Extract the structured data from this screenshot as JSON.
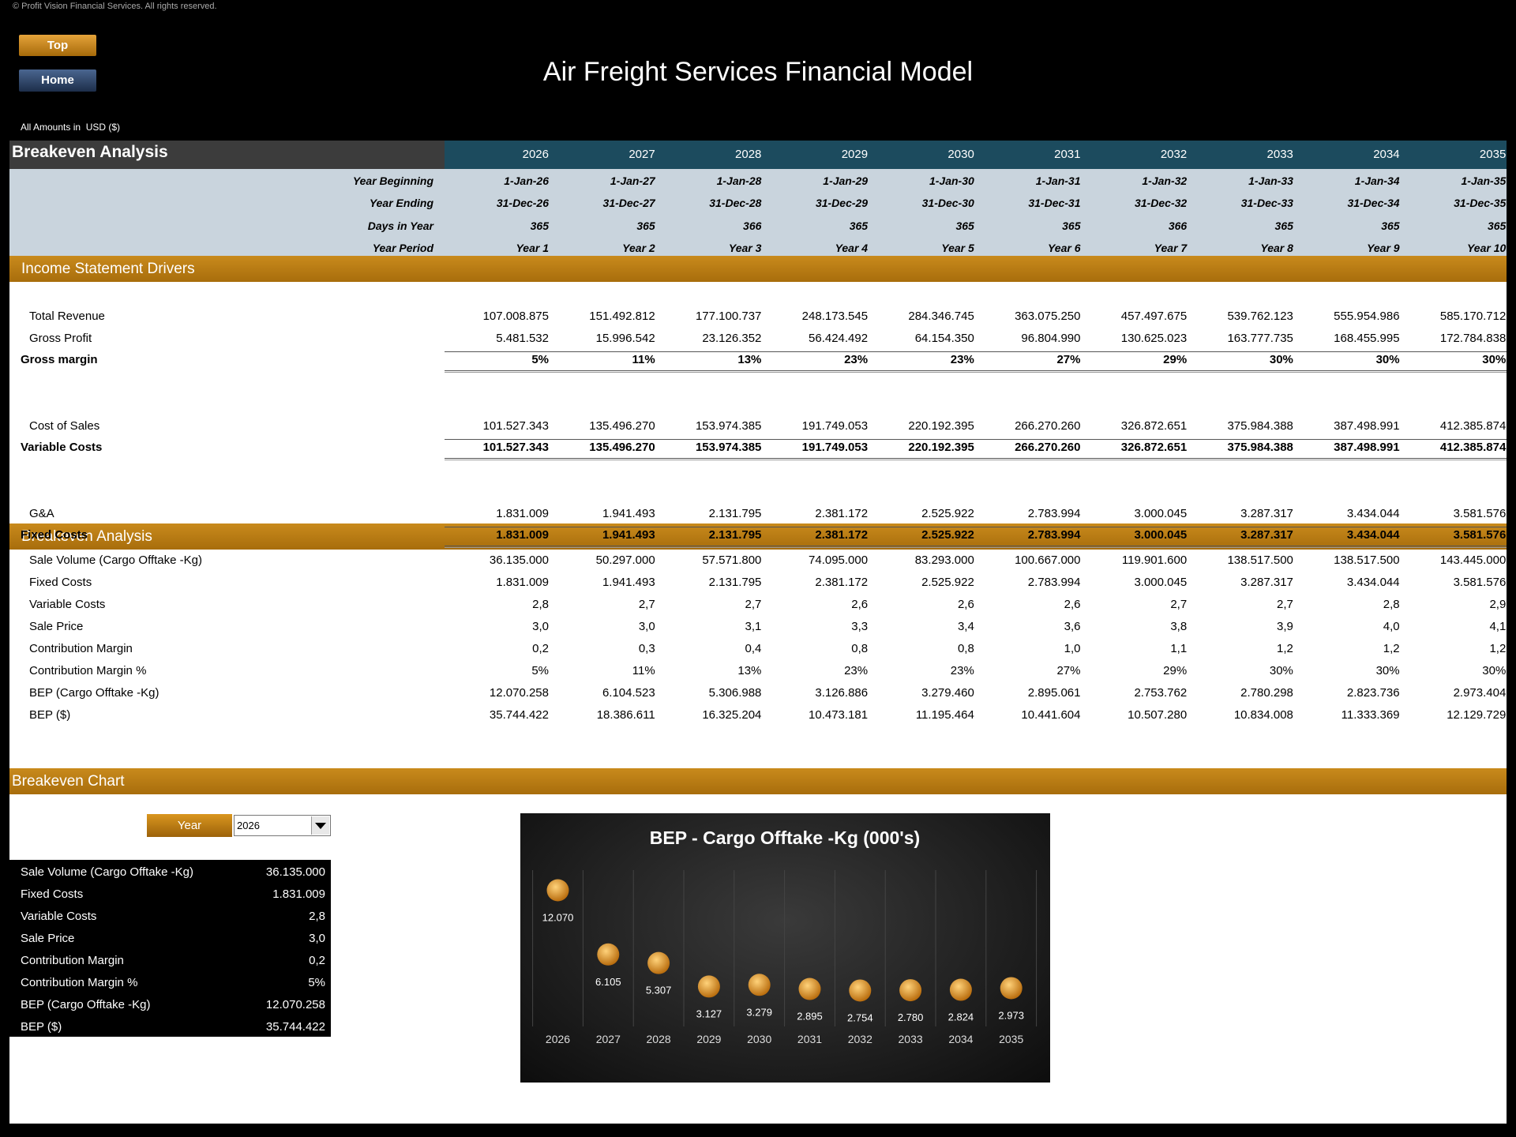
{
  "copyright": "© Profit Vision Financial Services. All rights reserved.",
  "buttons": [
    "Top",
    "Home"
  ],
  "title": "Air Freight Services Financial Model",
  "currency_note": "All Amounts in  USD ($)",
  "header": {
    "title": "Breakeven Analysis",
    "years": [
      "2026",
      "2027",
      "2028",
      "2029",
      "2030",
      "2031",
      "2032",
      "2033",
      "2034",
      "2035"
    ]
  },
  "period_rows": [
    {
      "label": "Year Beginning",
      "values": [
        "1-Jan-26",
        "1-Jan-27",
        "1-Jan-28",
        "1-Jan-29",
        "1-Jan-30",
        "1-Jan-31",
        "1-Jan-32",
        "1-Jan-33",
        "1-Jan-34",
        "1-Jan-35"
      ]
    },
    {
      "label": "Year Ending",
      "values": [
        "31-Dec-26",
        "31-Dec-27",
        "31-Dec-28",
        "31-Dec-29",
        "31-Dec-30",
        "31-Dec-31",
        "31-Dec-32",
        "31-Dec-33",
        "31-Dec-34",
        "31-Dec-35"
      ]
    },
    {
      "label": "Days in Year",
      "values": [
        "365",
        "365",
        "366",
        "365",
        "365",
        "365",
        "366",
        "365",
        "365",
        "365"
      ]
    },
    {
      "label": "Year Period",
      "values": [
        "Year 1",
        "Year 2",
        "Year 3",
        "Year 4",
        "Year 5",
        "Year 6",
        "Year 7",
        "Year 8",
        "Year 9",
        "Year 10"
      ]
    }
  ],
  "income": {
    "title": "Income Statement Drivers",
    "groups": [
      [
        {
          "label": "Total Revenue",
          "values": [
            "107.008.875",
            "151.492.812",
            "177.100.737",
            "248.173.545",
            "284.346.745",
            "363.075.250",
            "457.497.675",
            "539.762.123",
            "555.954.986",
            "585.170.712"
          ]
        },
        {
          "label": "Gross Profit",
          "values": [
            "5.481.532",
            "15.996.542",
            "23.126.352",
            "56.424.492",
            "64.154.350",
            "96.804.990",
            "130.625.023",
            "163.777.735",
            "168.455.995",
            "172.784.838"
          ]
        },
        {
          "label": "Gross margin",
          "values": [
            "5%",
            "11%",
            "13%",
            "23%",
            "23%",
            "27%",
            "29%",
            "30%",
            "30%",
            "30%"
          ]
        }
      ],
      [
        {
          "label": "Cost of Sales",
          "values": [
            "101.527.343",
            "135.496.270",
            "153.974.385",
            "191.749.053",
            "220.192.395",
            "266.270.260",
            "326.872.651",
            "375.984.388",
            "387.498.991",
            "412.385.874"
          ]
        },
        {
          "label": "Variable Costs",
          "values": [
            "101.527.343",
            "135.496.270",
            "153.974.385",
            "191.749.053",
            "220.192.395",
            "266.270.260",
            "326.872.651",
            "375.984.388",
            "387.498.991",
            "412.385.874"
          ]
        }
      ],
      [
        {
          "label": "G&A",
          "values": [
            "1.831.009",
            "1.941.493",
            "2.131.795",
            "2.381.172",
            "2.525.922",
            "2.783.994",
            "3.000.045",
            "3.287.317",
            "3.434.044",
            "3.581.576"
          ]
        },
        {
          "label": "Fixed Costs",
          "values": [
            "1.831.009",
            "1.941.493",
            "2.131.795",
            "2.381.172",
            "2.525.922",
            "2.783.994",
            "3.000.045",
            "3.287.317",
            "3.434.044",
            "3.581.576"
          ]
        }
      ]
    ]
  },
  "breakeven": {
    "title": "Breakeven Analysis",
    "rows": [
      {
        "label": "Sale Volume (Cargo Offtake -Kg)",
        "values": [
          "36.135.000",
          "50.297.000",
          "57.571.800",
          "74.095.000",
          "83.293.000",
          "100.667.000",
          "119.901.600",
          "138.517.500",
          "138.517.500",
          "143.445.000"
        ]
      },
      {
        "label": "Fixed Costs",
        "values": [
          "1.831.009",
          "1.941.493",
          "2.131.795",
          "2.381.172",
          "2.525.922",
          "2.783.994",
          "3.000.045",
          "3.287.317",
          "3.434.044",
          "3.581.576"
        ]
      },
      {
        "label": "Variable Costs",
        "values": [
          "2,8",
          "2,7",
          "2,7",
          "2,6",
          "2,6",
          "2,6",
          "2,7",
          "2,7",
          "2,8",
          "2,9"
        ]
      },
      {
        "label": "Sale Price",
        "values": [
          "3,0",
          "3,0",
          "3,1",
          "3,3",
          "3,4",
          "3,6",
          "3,8",
          "3,9",
          "4,0",
          "4,1"
        ]
      },
      {
        "label": "Contribution Margin",
        "values": [
          "0,2",
          "0,3",
          "0,4",
          "0,8",
          "0,8",
          "1,0",
          "1,1",
          "1,2",
          "1,2",
          "1,2"
        ]
      },
      {
        "label": "Contribution Margin %",
        "values": [
          "5%",
          "11%",
          "13%",
          "23%",
          "23%",
          "27%",
          "29%",
          "30%",
          "30%",
          "30%"
        ]
      },
      {
        "label": "BEP (Cargo Offtake -Kg)",
        "values": [
          "12.070.258",
          "6.104.523",
          "5.306.988",
          "3.126.886",
          "3.279.460",
          "2.895.061",
          "2.753.762",
          "2.780.298",
          "2.823.736",
          "2.973.404"
        ]
      },
      {
        "label": "BEP ($)",
        "values": [
          "35.744.422",
          "18.386.611",
          "16.325.204",
          "10.473.181",
          "11.195.464",
          "10.441.604",
          "10.507.280",
          "10.834.008",
          "11.333.369",
          "12.129.729"
        ]
      }
    ]
  },
  "chart_section": {
    "title": "Breakeven Chart",
    "selector_label": "Year",
    "selected": "2026",
    "summary": [
      [
        "Sale Volume (Cargo Offtake -Kg)",
        "36.135.000"
      ],
      [
        "Fixed Costs",
        "1.831.009"
      ],
      [
        "Variable Costs",
        "2,8"
      ],
      [
        "Sale Price",
        "3,0"
      ],
      [
        "Contribution Margin",
        "0,2"
      ],
      [
        "Contribution Margin %",
        "5%"
      ],
      [
        "BEP (Cargo Offtake -Kg)",
        "12.070.258"
      ],
      [
        "BEP ($)",
        "35.744.422"
      ]
    ]
  },
  "chart_data": {
    "type": "dot",
    "title": "BEP - Cargo Offtake -Kg (000's)",
    "categories": [
      "2026",
      "2027",
      "2028",
      "2029",
      "2030",
      "2031",
      "2032",
      "2033",
      "2034",
      "2035"
    ],
    "values": [
      12070,
      6105,
      5307,
      3127,
      3279,
      2895,
      2754,
      2780,
      2824,
      2973
    ],
    "value_labels": [
      "12.070",
      "6.105",
      "5.307",
      "3.127",
      "3.279",
      "2.895",
      "2.754",
      "2.780",
      "2.824",
      "2.973"
    ],
    "color": "#e8a23a"
  }
}
